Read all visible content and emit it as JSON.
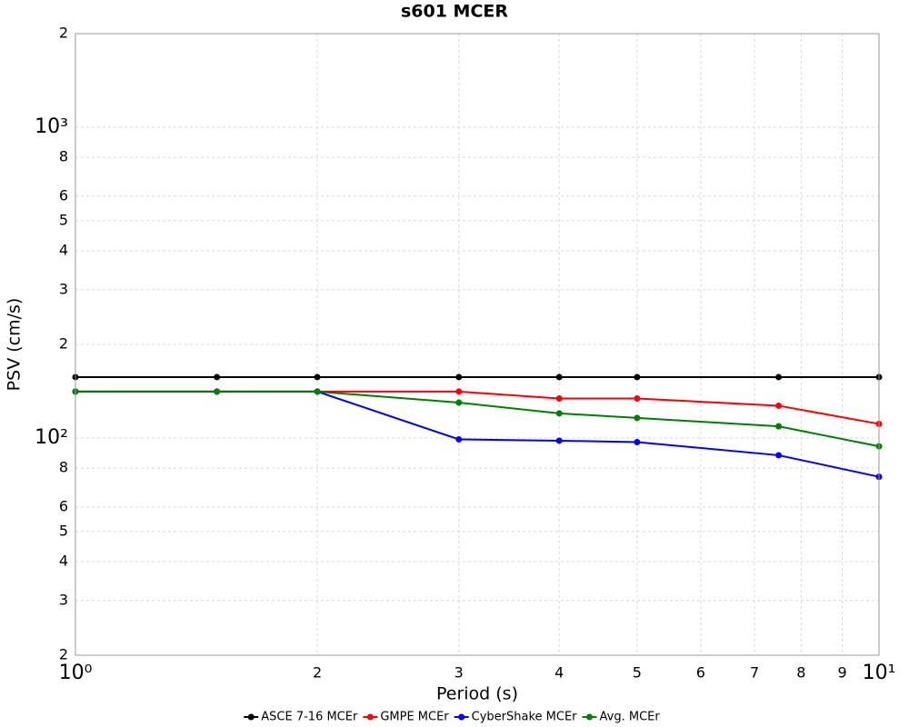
{
  "chart_data": {
    "type": "line",
    "title": "s601 MCER",
    "x_label": "Period (s)",
    "y_label": "PSV (cm/s)",
    "x": [
      1,
      1.5,
      2,
      3,
      4,
      5,
      7.5,
      10
    ],
    "xscale": "log",
    "yscale": "log",
    "grid": true,
    "legend": "bottom",
    "xlim": [
      1,
      10
    ],
    "ylim": [
      20,
      2000
    ],
    "xticks": [
      {
        "value": 1,
        "label": "10⁰"
      },
      2,
      3,
      4,
      5,
      6,
      7,
      8,
      9,
      {
        "value": 10,
        "label": "10¹"
      }
    ],
    "yticks": [
      2,
      3,
      4,
      5,
      6,
      8,
      {
        "value": 100,
        "label": "10²"
      },
      2,
      3,
      4,
      5,
      6,
      8,
      {
        "value": 1000,
        "label": "10³"
      },
      2
    ],
    "ytick_values": [
      20,
      30,
      40,
      50,
      60,
      80,
      100,
      200,
      300,
      400,
      500,
      600,
      800,
      1000,
      2000
    ],
    "series": [
      {
        "name": "ASCE 7-16 MCEr",
        "color": "#000000",
        "values": [
          157,
          157,
          157,
          157,
          157,
          157,
          157,
          157
        ]
      },
      {
        "name": "GMPE MCEr",
        "color": "#ff0000",
        "values": [
          141,
          141,
          141,
          141,
          134,
          134,
          127,
          111
        ]
      },
      {
        "name": "CyberShake MCEr",
        "color": "#0000ff",
        "values": [
          141,
          141,
          141,
          99,
          98,
          97,
          88,
          75
        ]
      },
      {
        "name": "Avg. MCEr",
        "color": "#008000",
        "values": [
          141,
          141,
          141,
          130,
          120,
          116,
          109,
          94
        ]
      }
    ]
  }
}
